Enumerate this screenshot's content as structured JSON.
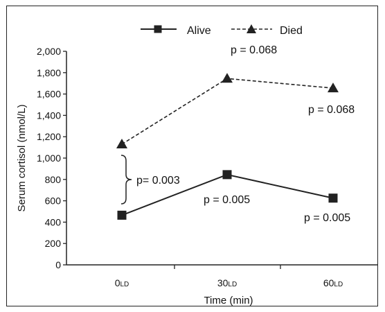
{
  "chart_data": {
    "type": "line",
    "title": "",
    "xlabel": "Time (min)",
    "ylabel": "Serum cortisol (nmol/L)",
    "ylim": [
      0,
      2000
    ],
    "yticks": [
      0,
      200,
      400,
      600,
      800,
      1000,
      1200,
      1400,
      1600,
      1800,
      2000
    ],
    "ytick_labels": [
      "0",
      "200",
      "400",
      "600",
      "800",
      "1,000",
      "1,200",
      "1,400",
      "1,600",
      "1,800",
      "2,000"
    ],
    "categories": [
      "0",
      "30",
      "60"
    ],
    "category_subscript": "LD",
    "legend_position": "top",
    "grid": false,
    "series": [
      {
        "name": "Alive",
        "values": [
          465,
          845,
          625
        ],
        "marker": "square",
        "line": "solid",
        "color": "#222222"
      },
      {
        "name": "Died",
        "values": [
          1130,
          1745,
          1655
        ],
        "marker": "triangle",
        "line": "dashed",
        "color": "#222222"
      }
    ],
    "annotations": {
      "died_30": "p = 0.068",
      "died_60": "p = 0.068",
      "alive_30": "p = 0.005",
      "alive_60": "p = 0.005",
      "bracket_0": "p= 0.003"
    }
  }
}
